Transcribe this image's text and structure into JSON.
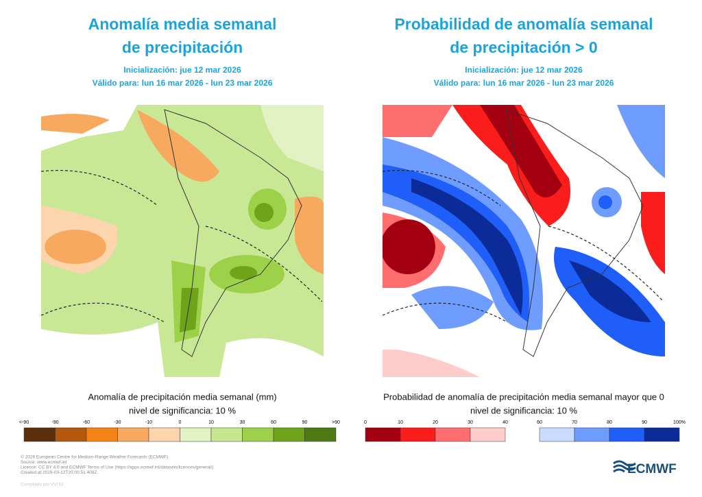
{
  "panels": [
    {
      "title": [
        "Anomalía media semanal",
        "de precipitación"
      ],
      "init": "Inicialización: jue 12 mar 2026",
      "valid": "Válido para: lun 16 mar 2026 - lun 23 mar 2026",
      "caption": "Anomalía de precipitación media semanal (mm)",
      "significance": "nivel de significancia: 10 %",
      "colorbar": {
        "labels": [
          "<-90",
          "-90",
          "-60",
          "-30",
          "-10",
          "0",
          "10",
          "30",
          "60",
          "90",
          ">90"
        ],
        "colors": [
          "#5c2e0a",
          "#b4580e",
          "#f58214",
          "#f7aa5f",
          "#fdd5ad",
          "#e2f2c2",
          "#c6e790",
          "#9ed14a",
          "#6ea31a",
          "#4d7a12"
        ]
      }
    },
    {
      "title": [
        "Probabilidad de anomalía semanal",
        "de precipitación > 0"
      ],
      "init": "Inicialización: jue 12 mar 2026",
      "valid": "Válido para: lun 16 mar 2026 - lun 23 mar 2026",
      "caption": "Probabilidad de anomalía de precipitación media semanal mayor que 0",
      "significance": "nivel de significancia: 10 %",
      "colorbar": {
        "labels": [
          "0",
          "10",
          "20",
          "30",
          "40",
          "60",
          "70",
          "80",
          "90",
          "100%"
        ],
        "colors": [
          "#a30012",
          "#fb1c1c",
          "#ff6e6e",
          "#ffcccc",
          "#c9dbff",
          "#6f9dff",
          "#1f5ef8",
          "#0b2c98"
        ]
      }
    }
  ],
  "footer": [
    "© 2026 European Centre for Medium-Range Weather Forecasts (ECMWF)",
    "Source: www.ecmwf.int",
    "Licence: CC BY 4.0 and ECMWF Terms of Use (https://apps.ecmwf.int/datasets/licences/general/)",
    "Created at 2026-03-12T20:00:51.408Z"
  ],
  "credit": "Compilado por VVUG",
  "logo": "ECMWF"
}
